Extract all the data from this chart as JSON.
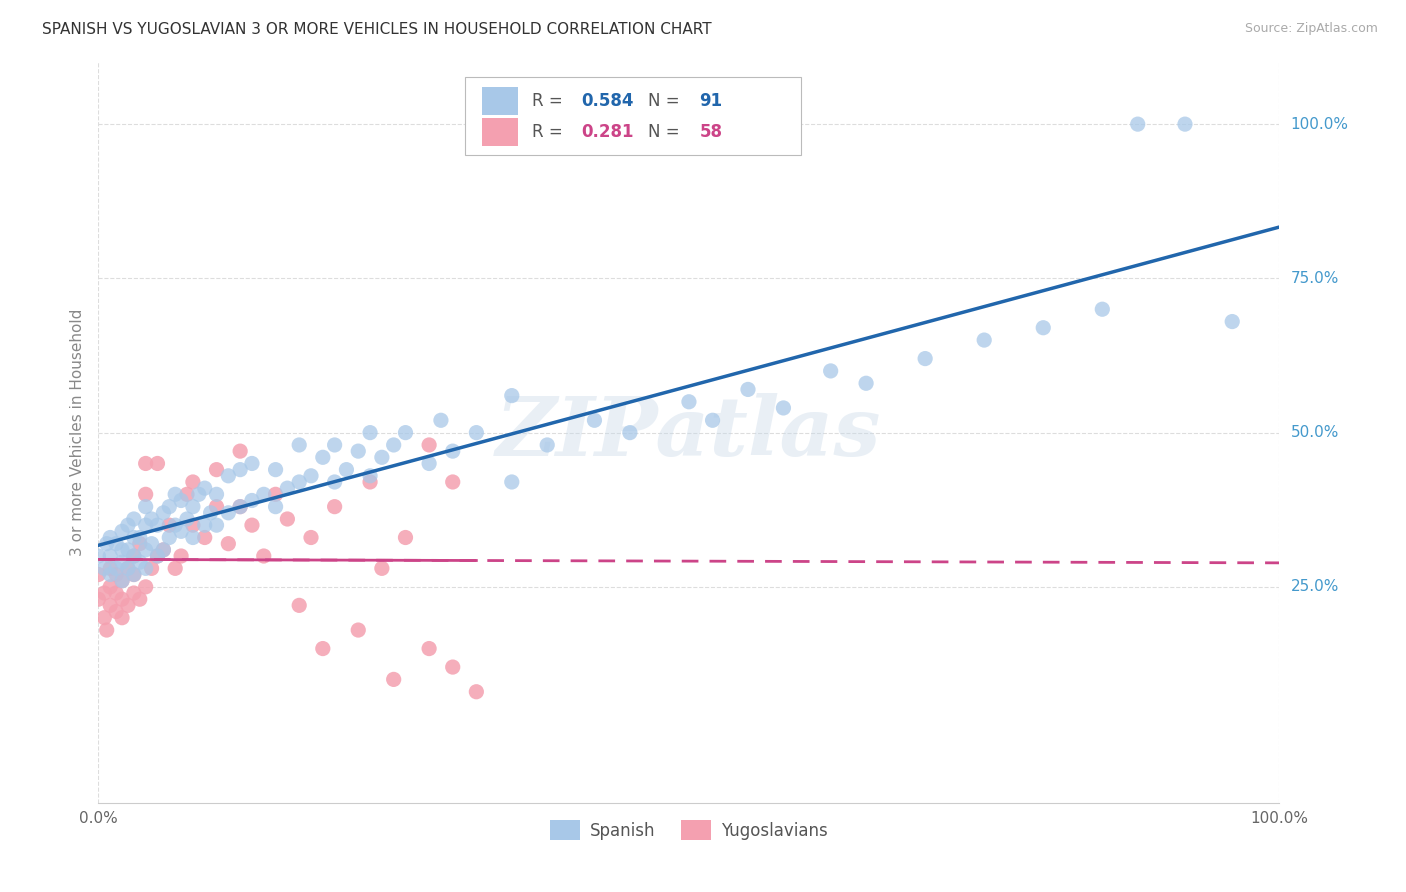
{
  "title": "SPANISH VS YUGOSLAVIAN 3 OR MORE VEHICLES IN HOUSEHOLD CORRELATION CHART",
  "source": "Source: ZipAtlas.com",
  "ylabel": "3 or more Vehicles in Household",
  "watermark": "ZIPatlas",
  "legend_label_spanish": "Spanish",
  "legend_label_yugoslavian": "Yugoslavians",
  "spanish_color": "#A8C8E8",
  "yugoslavian_color": "#F4A0B0",
  "trend_spanish_color": "#2166AC",
  "trend_yugoslav_color": "#CC4488",
  "background_color": "#FFFFFF",
  "grid_color": "#DDDDDD",
  "ytick_labels": [
    "25.0%",
    "50.0%",
    "75.0%",
    "100.0%"
  ],
  "ytick_values": [
    0.25,
    0.5,
    0.75,
    1.0
  ],
  "xtick_labels": [
    "0.0%",
    "100.0%"
  ],
  "xtick_values": [
    0.0,
    1.0
  ],
  "xlim": [
    0.0,
    1.0
  ],
  "ylim": [
    -0.1,
    1.1
  ],
  "r_spanish": "0.584",
  "n_spanish": "91",
  "r_yugoslav": "0.281",
  "n_yugoslav": "58",
  "spanish_x": [
    0.0,
    0.005,
    0.007,
    0.01,
    0.01,
    0.01,
    0.015,
    0.015,
    0.02,
    0.02,
    0.02,
    0.02,
    0.025,
    0.025,
    0.025,
    0.03,
    0.03,
    0.03,
    0.03,
    0.035,
    0.035,
    0.04,
    0.04,
    0.04,
    0.04,
    0.045,
    0.045,
    0.05,
    0.05,
    0.055,
    0.055,
    0.06,
    0.06,
    0.065,
    0.065,
    0.07,
    0.07,
    0.075,
    0.08,
    0.08,
    0.085,
    0.09,
    0.09,
    0.095,
    0.1,
    0.1,
    0.11,
    0.11,
    0.12,
    0.12,
    0.13,
    0.13,
    0.14,
    0.15,
    0.15,
    0.16,
    0.17,
    0.17,
    0.18,
    0.19,
    0.2,
    0.2,
    0.21,
    0.22,
    0.23,
    0.23,
    0.24,
    0.25,
    0.26,
    0.28,
    0.29,
    0.3,
    0.32,
    0.35,
    0.35,
    0.38,
    0.42,
    0.45,
    0.5,
    0.52,
    0.55,
    0.58,
    0.62,
    0.65,
    0.7,
    0.75,
    0.8,
    0.85,
    0.88,
    0.92,
    0.96
  ],
  "spanish_y": [
    0.3,
    0.28,
    0.32,
    0.27,
    0.3,
    0.33,
    0.28,
    0.32,
    0.26,
    0.29,
    0.31,
    0.34,
    0.28,
    0.31,
    0.35,
    0.27,
    0.3,
    0.33,
    0.36,
    0.29,
    0.33,
    0.28,
    0.31,
    0.35,
    0.38,
    0.32,
    0.36,
    0.3,
    0.35,
    0.31,
    0.37,
    0.33,
    0.38,
    0.35,
    0.4,
    0.34,
    0.39,
    0.36,
    0.33,
    0.38,
    0.4,
    0.35,
    0.41,
    0.37,
    0.35,
    0.4,
    0.37,
    0.43,
    0.38,
    0.44,
    0.39,
    0.45,
    0.4,
    0.38,
    0.44,
    0.41,
    0.42,
    0.48,
    0.43,
    0.46,
    0.42,
    0.48,
    0.44,
    0.47,
    0.43,
    0.5,
    0.46,
    0.48,
    0.5,
    0.45,
    0.52,
    0.47,
    0.5,
    0.42,
    0.56,
    0.48,
    0.52,
    0.5,
    0.55,
    0.52,
    0.57,
    0.54,
    0.6,
    0.58,
    0.62,
    0.65,
    0.67,
    0.7,
    1.0,
    1.0,
    0.68
  ],
  "yugoslav_x": [
    0.0,
    0.0,
    0.005,
    0.005,
    0.007,
    0.01,
    0.01,
    0.01,
    0.015,
    0.015,
    0.015,
    0.02,
    0.02,
    0.02,
    0.025,
    0.025,
    0.03,
    0.03,
    0.03,
    0.035,
    0.035,
    0.04,
    0.04,
    0.04,
    0.045,
    0.05,
    0.05,
    0.055,
    0.06,
    0.065,
    0.07,
    0.075,
    0.08,
    0.08,
    0.09,
    0.1,
    0.1,
    0.11,
    0.12,
    0.12,
    0.13,
    0.14,
    0.15,
    0.16,
    0.17,
    0.18,
    0.19,
    0.2,
    0.22,
    0.23,
    0.24,
    0.25,
    0.26,
    0.28,
    0.28,
    0.3,
    0.3,
    0.32
  ],
  "yugoslav_y": [
    0.23,
    0.27,
    0.2,
    0.24,
    0.18,
    0.22,
    0.25,
    0.28,
    0.21,
    0.24,
    0.27,
    0.2,
    0.23,
    0.26,
    0.22,
    0.28,
    0.24,
    0.27,
    0.3,
    0.23,
    0.32,
    0.25,
    0.4,
    0.45,
    0.28,
    0.3,
    0.45,
    0.31,
    0.35,
    0.28,
    0.3,
    0.4,
    0.35,
    0.42,
    0.33,
    0.38,
    0.44,
    0.32,
    0.38,
    0.47,
    0.35,
    0.3,
    0.4,
    0.36,
    0.22,
    0.33,
    0.15,
    0.38,
    0.18,
    0.42,
    0.28,
    0.1,
    0.33,
    0.15,
    0.48,
    0.12,
    0.42,
    0.08
  ]
}
